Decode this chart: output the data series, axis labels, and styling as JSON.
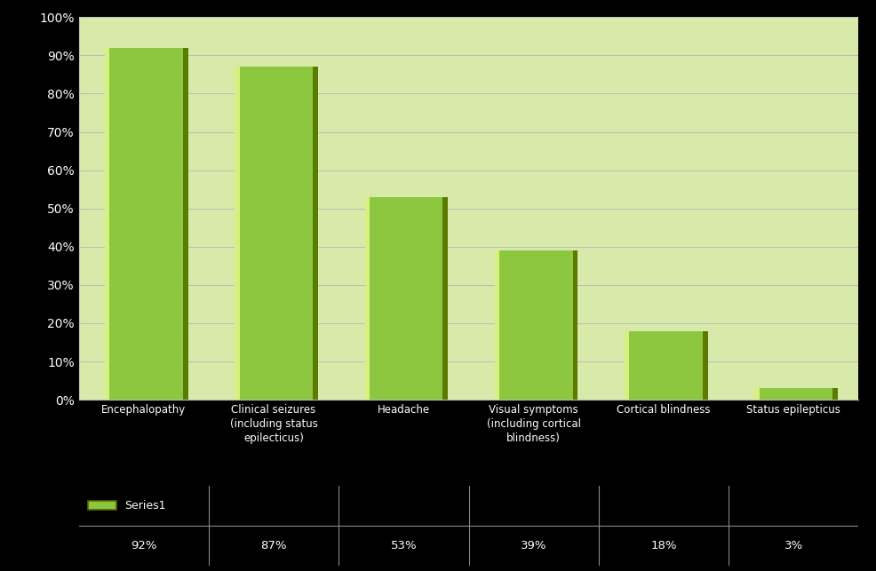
{
  "categories": [
    "Encephalopathy",
    "Clinical seizures\n(including status\nepilecticus)",
    "Headache",
    "Visual symptoms\n(including cortical\nblindness)",
    "Cortical blindness",
    "Status epilepticus"
  ],
  "values": [
    92,
    87,
    53,
    39,
    18,
    3
  ],
  "bar_color_face": "#8dc63f",
  "bar_color_light": "#c5e06e",
  "bar_color_dark": "#5a7a00",
  "bar_color_top": "#d8f080",
  "bar_color_right": "#6b9900",
  "plot_bg_color": "#d8eaaa",
  "grid_color": "#bbbbbb",
  "text_color": "#ffffff",
  "axis_label_color": "#ffffff",
  "legend_label": "Series1",
  "legend_box_color": "#8dc63f",
  "legend_box_edge": "#556600",
  "ylabel_values": [
    0,
    10,
    20,
    30,
    40,
    50,
    60,
    70,
    80,
    90,
    100
  ],
  "outer_bg": "#000000",
  "table_border_color": "#888888",
  "table_bg": "#000000",
  "bar_width": 0.6
}
